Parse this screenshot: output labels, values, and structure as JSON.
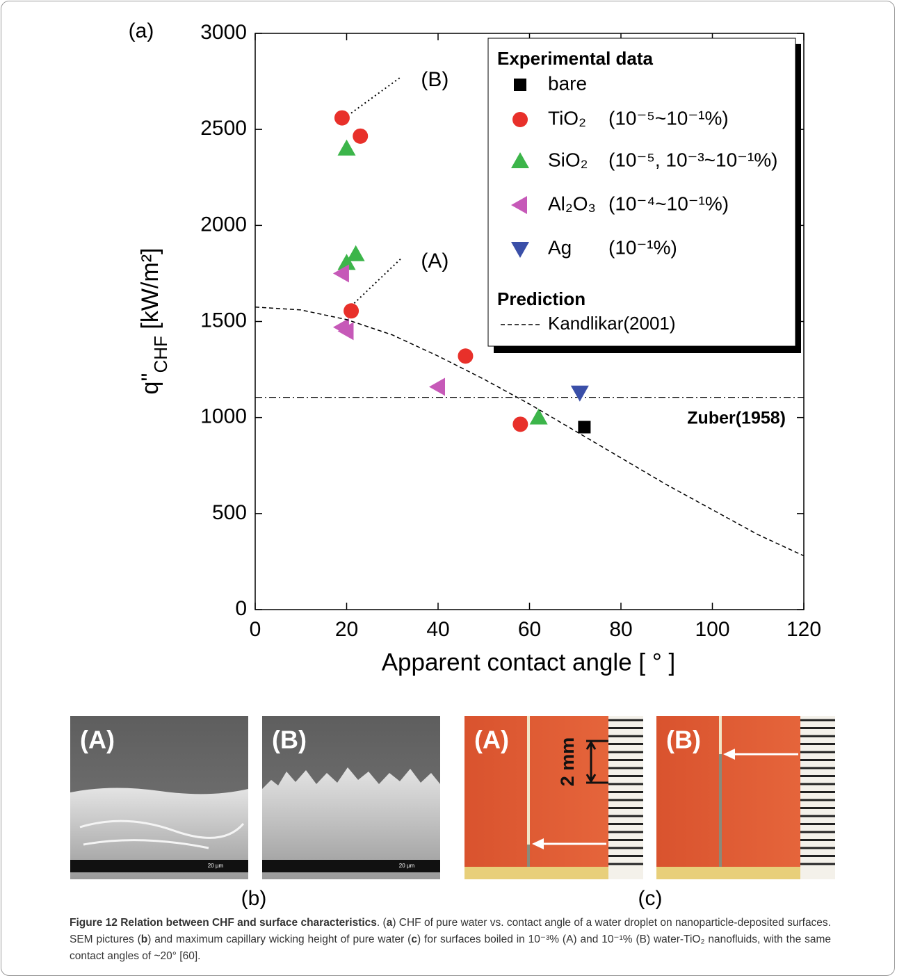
{
  "chart_data": {
    "type": "scatter",
    "panel_label": "(a)",
    "x_label": "Apparent contact angle [ ° ]",
    "y_label": {
      "symbol": "q\"",
      "subscript": "CHF",
      "unit": "[kW/m²]"
    },
    "xlim": [
      0,
      120
    ],
    "xticks": [
      0,
      20,
      40,
      60,
      80,
      100,
      120
    ],
    "ylim": [
      0,
      3000
    ],
    "yticks": [
      0,
      500,
      1000,
      1500,
      2000,
      2500,
      3000
    ],
    "legend": {
      "titles": [
        "Experimental data",
        "Prediction"
      ],
      "position": "upper right"
    },
    "series": [
      {
        "name": "bare",
        "marker": "square",
        "color": "#000000",
        "group": 0,
        "x": [
          72
        ],
        "values": [
          950
        ]
      },
      {
        "name": "TiO₂",
        "concentration": "(10⁻⁵~10⁻¹%)",
        "marker": "circle",
        "color": "#e8302a",
        "group": 0,
        "x": [
          19,
          23,
          21,
          46,
          58
        ],
        "values": [
          2560,
          2465,
          1555,
          1320,
          965
        ]
      },
      {
        "name": "SiO₂",
        "concentration": "(10⁻⁵, 10⁻³~10⁻¹%)",
        "marker": "triangle-up",
        "color": "#3cb54a",
        "group": 0,
        "x": [
          20,
          20,
          22,
          62
        ],
        "values": [
          2400,
          1805,
          1850,
          1000
        ]
      },
      {
        "name": "Al₂O₃",
        "concentration": "(10⁻⁴~10⁻¹%)",
        "marker": "triangle-left",
        "color": "#c659b8",
        "group": 0,
        "x": [
          19,
          19,
          20,
          40
        ],
        "values": [
          1750,
          1470,
          1450,
          1160
        ]
      },
      {
        "name": "Ag",
        "concentration": "(10⁻¹%)",
        "marker": "triangle-down",
        "color": "#3a4fa8",
        "group": 0,
        "x": [
          71
        ],
        "values": [
          1130
        ]
      },
      {
        "name": "Kandlikar(2001)",
        "marker": "dashed-line",
        "color": "#000000",
        "group": 1,
        "x": [
          0,
          10,
          20,
          30,
          40,
          50,
          60,
          70,
          80,
          90,
          100,
          110,
          120
        ],
        "values": [
          1575,
          1560,
          1510,
          1430,
          1320,
          1200,
          1070,
          930,
          790,
          650,
          520,
          390,
          280
        ]
      }
    ],
    "reference_line": {
      "name": "Zuber(1958)",
      "value": 1105,
      "color": "#000000"
    },
    "guides": [
      {
        "label": "(A)",
        "x": [
          21,
          32
        ],
        "values": [
          1580,
          1830
        ]
      },
      {
        "label": "(B)",
        "x": [
          21,
          32
        ],
        "values": [
          2585,
          2775
        ]
      }
    ]
  },
  "panels": {
    "b": {
      "label": "(b)",
      "images": [
        {
          "label": "(A)",
          "scale": "20 µm"
        },
        {
          "label": "(B)",
          "scale": "20 µm"
        }
      ]
    },
    "c": {
      "label": "(c)",
      "images": [
        {
          "label": "(A)",
          "scale": "2 mm"
        },
        {
          "label": "(B)"
        }
      ]
    }
  },
  "caption": {
    "runs": [
      {
        "text": "Figure 12 Relation between CHF and surface characteristics",
        "bold": true
      },
      {
        "text": ". ("
      },
      {
        "text": "a",
        "bold": true
      },
      {
        "text": ") CHF of pure water vs. contact angle of a water droplet on nanoparticle-deposited surfaces. SEM pictures ("
      },
      {
        "text": "b",
        "bold": true
      },
      {
        "text": ") and maximum capillary wicking height of pure water ("
      },
      {
        "text": "c",
        "bold": true
      },
      {
        "text": ") for surfaces boiled in 10⁻³% (A) and 10⁻¹% (B) water-TiO₂ nanofluids, with the same contact angles of ~20° [60]."
      }
    ]
  }
}
